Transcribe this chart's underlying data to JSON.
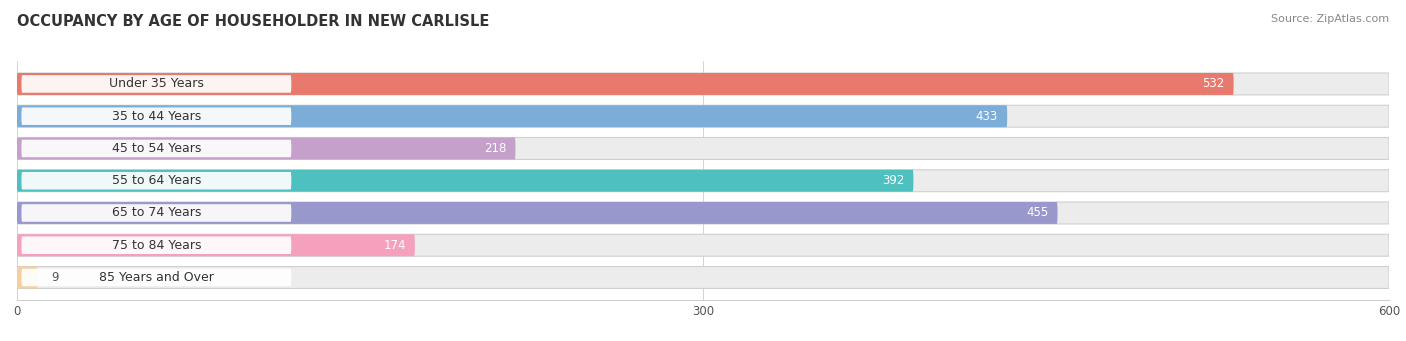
{
  "title": "OCCUPANCY BY AGE OF HOUSEHOLDER IN NEW CARLISLE",
  "source": "Source: ZipAtlas.com",
  "categories": [
    "Under 35 Years",
    "35 to 44 Years",
    "45 to 54 Years",
    "55 to 64 Years",
    "65 to 74 Years",
    "75 to 84 Years",
    "85 Years and Over"
  ],
  "values": [
    532,
    433,
    218,
    392,
    455,
    174,
    9
  ],
  "bar_colors": [
    "#E8796C",
    "#7BADD8",
    "#C4A0CB",
    "#4EC0C0",
    "#9898CC",
    "#F5A0BC",
    "#F5CFA0"
  ],
  "bar_bg_color": "#ECECEC",
  "xlim": [
    0,
    600
  ],
  "xticks": [
    0,
    300,
    600
  ],
  "title_fontsize": 10.5,
  "source_fontsize": 8,
  "label_fontsize": 9,
  "value_fontsize": 8.5,
  "bar_height": 0.68,
  "figsize": [
    14.06,
    3.41
  ],
  "dpi": 100,
  "value_threshold": 60
}
